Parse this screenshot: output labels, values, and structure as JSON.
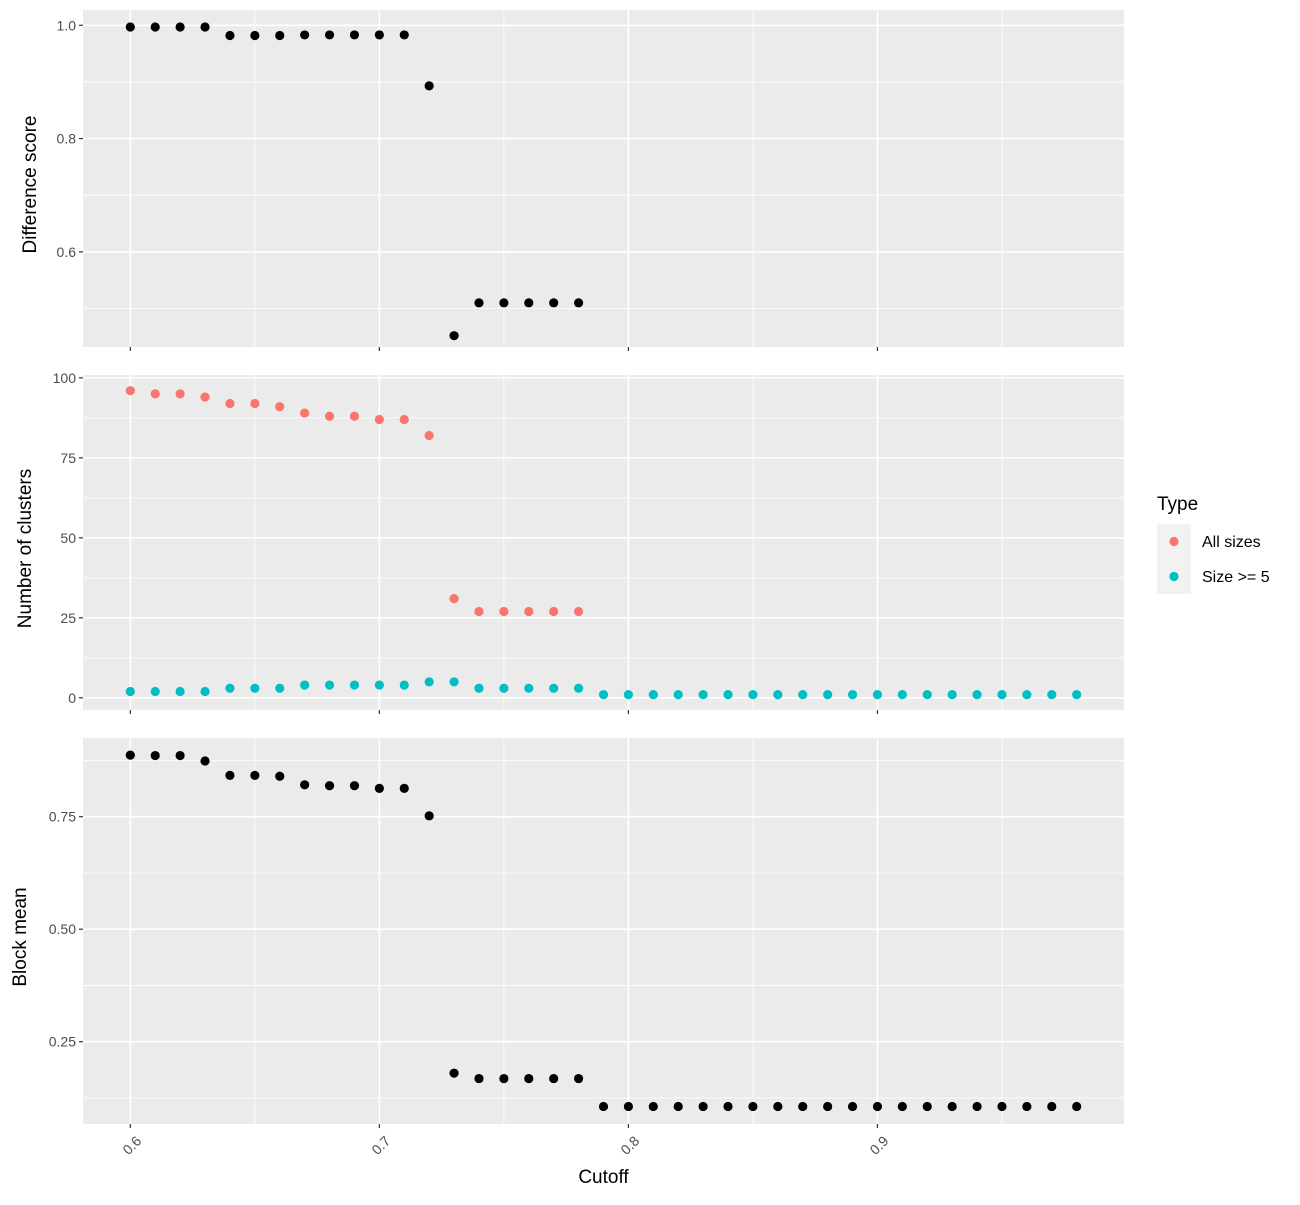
{
  "chart_data": {
    "type": "scatter",
    "xlabel": "Cutoff",
    "x_ticks": [
      "0.6",
      "0.7",
      "0.8",
      "0.9"
    ],
    "x_tick_values": [
      0.6,
      0.7,
      0.8,
      0.9
    ],
    "xlim": [
      0.581,
      0.999
    ],
    "grid": true,
    "legend_position": "right",
    "legend": {
      "title": "Type",
      "entries": [
        {
          "name": "All sizes",
          "color": "#F8766D"
        },
        {
          "name": "Size >= 5",
          "color": "#00BFC4"
        }
      ]
    },
    "panels": [
      {
        "ylabel": "Difference score",
        "y_ticks": [
          "0.6",
          "0.8",
          "1.0"
        ],
        "y_tick_values": [
          0.6,
          0.8,
          1.0
        ],
        "ylim": [
          0.432,
          1.027
        ],
        "series": [
          {
            "color": "#000000",
            "points": [
              [
                0.6,
                0.997
              ],
              [
                0.61,
                0.997
              ],
              [
                0.62,
                0.997
              ],
              [
                0.63,
                0.997
              ],
              [
                0.64,
                0.982
              ],
              [
                0.65,
                0.982
              ],
              [
                0.66,
                0.982
              ],
              [
                0.67,
                0.983
              ],
              [
                0.68,
                0.983
              ],
              [
                0.69,
                0.983
              ],
              [
                0.7,
                0.983
              ],
              [
                0.71,
                0.983
              ],
              [
                0.72,
                0.893
              ],
              [
                0.73,
                0.452
              ],
              [
                0.74,
                0.51
              ],
              [
                0.75,
                0.51
              ],
              [
                0.76,
                0.51
              ],
              [
                0.77,
                0.51
              ],
              [
                0.78,
                0.51
              ]
            ]
          }
        ]
      },
      {
        "ylabel": "Number of clusters",
        "y_ticks": [
          "0",
          "25",
          "50",
          "75",
          "100"
        ],
        "y_tick_values": [
          0,
          25,
          50,
          75,
          100
        ],
        "ylim": [
          -3.8,
          100.9
        ],
        "series": [
          {
            "name": "All sizes",
            "color": "#F8766D",
            "points": [
              [
                0.6,
                96
              ],
              [
                0.61,
                95
              ],
              [
                0.62,
                95
              ],
              [
                0.63,
                94
              ],
              [
                0.64,
                92
              ],
              [
                0.65,
                92
              ],
              [
                0.66,
                91
              ],
              [
                0.67,
                89
              ],
              [
                0.68,
                88
              ],
              [
                0.69,
                88
              ],
              [
                0.7,
                87
              ],
              [
                0.71,
                87
              ],
              [
                0.72,
                82
              ],
              [
                0.73,
                31
              ],
              [
                0.74,
                27
              ],
              [
                0.75,
                27
              ],
              [
                0.76,
                27
              ],
              [
                0.77,
                27
              ],
              [
                0.78,
                27
              ]
            ]
          },
          {
            "name": "Size >= 5",
            "color": "#00BFC4",
            "points": [
              [
                0.6,
                2
              ],
              [
                0.61,
                2
              ],
              [
                0.62,
                2
              ],
              [
                0.63,
                2
              ],
              [
                0.64,
                3
              ],
              [
                0.65,
                3
              ],
              [
                0.66,
                3
              ],
              [
                0.67,
                4
              ],
              [
                0.68,
                4
              ],
              [
                0.69,
                4
              ],
              [
                0.7,
                4
              ],
              [
                0.71,
                4
              ],
              [
                0.72,
                5
              ],
              [
                0.73,
                5
              ],
              [
                0.74,
                3
              ],
              [
                0.75,
                3
              ],
              [
                0.76,
                3
              ],
              [
                0.77,
                3
              ],
              [
                0.78,
                3
              ],
              [
                0.79,
                1
              ],
              [
                0.8,
                1
              ],
              [
                0.81,
                1
              ],
              [
                0.82,
                1
              ],
              [
                0.83,
                1
              ],
              [
                0.84,
                1
              ],
              [
                0.85,
                1
              ],
              [
                0.86,
                1
              ],
              [
                0.87,
                1
              ],
              [
                0.88,
                1
              ],
              [
                0.89,
                1
              ],
              [
                0.9,
                1
              ],
              [
                0.91,
                1
              ],
              [
                0.92,
                1
              ],
              [
                0.93,
                1
              ],
              [
                0.94,
                1
              ],
              [
                0.95,
                1
              ],
              [
                0.96,
                1
              ],
              [
                0.97,
                1
              ],
              [
                0.98,
                1
              ]
            ]
          }
        ]
      },
      {
        "ylabel": "Block mean",
        "y_ticks": [
          "0.25",
          "0.50",
          "0.75"
        ],
        "y_tick_values": [
          0.25,
          0.5,
          0.75
        ],
        "ylim": [
          0.067,
          0.925
        ],
        "series": [
          {
            "color": "#000000",
            "points": [
              [
                0.6,
                0.887
              ],
              [
                0.61,
                0.886
              ],
              [
                0.62,
                0.886
              ],
              [
                0.63,
                0.874
              ],
              [
                0.64,
                0.842
              ],
              [
                0.65,
                0.842
              ],
              [
                0.66,
                0.84
              ],
              [
                0.67,
                0.821
              ],
              [
                0.68,
                0.819
              ],
              [
                0.69,
                0.819
              ],
              [
                0.7,
                0.813
              ],
              [
                0.71,
                0.813
              ],
              [
                0.72,
                0.752
              ],
              [
                0.73,
                0.18
              ],
              [
                0.74,
                0.168
              ],
              [
                0.75,
                0.168
              ],
              [
                0.76,
                0.168
              ],
              [
                0.77,
                0.168
              ],
              [
                0.78,
                0.168
              ],
              [
                0.79,
                0.106
              ],
              [
                0.8,
                0.106
              ],
              [
                0.81,
                0.106
              ],
              [
                0.82,
                0.106
              ],
              [
                0.83,
                0.106
              ],
              [
                0.84,
                0.106
              ],
              [
                0.85,
                0.106
              ],
              [
                0.86,
                0.106
              ],
              [
                0.87,
                0.106
              ],
              [
                0.88,
                0.106
              ],
              [
                0.89,
                0.106
              ],
              [
                0.9,
                0.106
              ],
              [
                0.91,
                0.106
              ],
              [
                0.92,
                0.106
              ],
              [
                0.93,
                0.106
              ],
              [
                0.94,
                0.106
              ],
              [
                0.95,
                0.106
              ],
              [
                0.96,
                0.106
              ],
              [
                0.97,
                0.106
              ],
              [
                0.98,
                0.106
              ]
            ]
          }
        ]
      }
    ]
  }
}
